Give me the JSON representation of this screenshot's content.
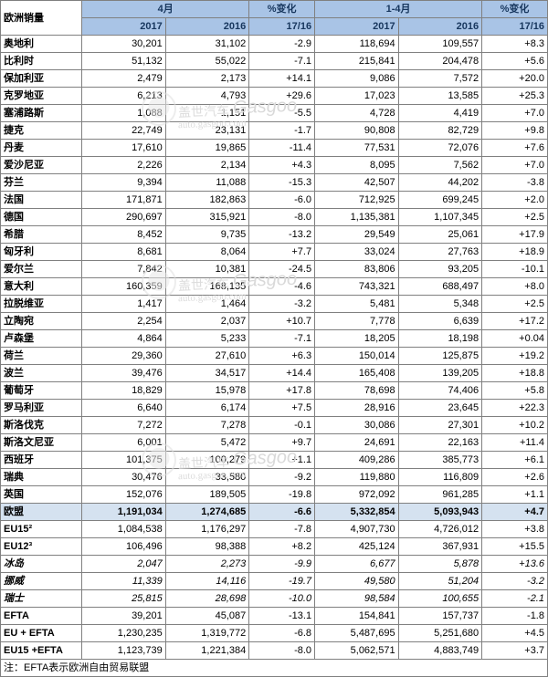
{
  "title": "欧洲销量",
  "header": {
    "group_apr": "4月",
    "group_apr_pct": "%变化",
    "group_ytd": "1-4月",
    "group_ytd_pct": "%变化",
    "y2017": "2017",
    "y2016": "2016",
    "pct": "17/16"
  },
  "rows": [
    {
      "c": "奥地利",
      "a17": "30,201",
      "a16": "31,102",
      "ap": "-2.9",
      "y17": "118,694",
      "y16": "109,557",
      "yp": "+8.3"
    },
    {
      "c": "比利时",
      "a17": "51,132",
      "a16": "55,022",
      "ap": "-7.1",
      "y17": "215,841",
      "y16": "204,478",
      "yp": "+5.6"
    },
    {
      "c": "保加利亚",
      "a17": "2,479",
      "a16": "2,173",
      "ap": "+14.1",
      "y17": "9,086",
      "y16": "7,572",
      "yp": "+20.0"
    },
    {
      "c": "克罗地亚",
      "a17": "6,213",
      "a16": "4,793",
      "ap": "+29.6",
      "y17": "17,023",
      "y16": "13,585",
      "yp": "+25.3"
    },
    {
      "c": "塞浦路斯",
      "a17": "1,088",
      "a16": "1,151",
      "ap": "-5.5",
      "y17": "4,728",
      "y16": "4,419",
      "yp": "+7.0"
    },
    {
      "c": "捷克",
      "a17": "22,749",
      "a16": "23,131",
      "ap": "-1.7",
      "y17": "90,808",
      "y16": "82,729",
      "yp": "+9.8"
    },
    {
      "c": "丹麦",
      "a17": "17,610",
      "a16": "19,865",
      "ap": "-11.4",
      "y17": "77,531",
      "y16": "72,076",
      "yp": "+7.6"
    },
    {
      "c": "爱沙尼亚",
      "a17": "2,226",
      "a16": "2,134",
      "ap": "+4.3",
      "y17": "8,095",
      "y16": "7,562",
      "yp": "+7.0"
    },
    {
      "c": "芬兰",
      "a17": "9,394",
      "a16": "11,088",
      "ap": "-15.3",
      "y17": "42,507",
      "y16": "44,202",
      "yp": "-3.8"
    },
    {
      "c": "法国",
      "a17": "171,871",
      "a16": "182,863",
      "ap": "-6.0",
      "y17": "712,925",
      "y16": "699,245",
      "yp": "+2.0"
    },
    {
      "c": "德国",
      "a17": "290,697",
      "a16": "315,921",
      "ap": "-8.0",
      "y17": "1,135,381",
      "y16": "1,107,345",
      "yp": "+2.5"
    },
    {
      "c": "希腊",
      "a17": "8,452",
      "a16": "9,735",
      "ap": "-13.2",
      "y17": "29,549",
      "y16": "25,061",
      "yp": "+17.9"
    },
    {
      "c": "匈牙利",
      "a17": "8,681",
      "a16": "8,064",
      "ap": "+7.7",
      "y17": "33,024",
      "y16": "27,763",
      "yp": "+18.9"
    },
    {
      "c": "爱尔兰",
      "a17": "7,842",
      "a16": "10,381",
      "ap": "-24.5",
      "y17": "83,806",
      "y16": "93,205",
      "yp": "-10.1"
    },
    {
      "c": "意大利",
      "a17": "160,359",
      "a16": "168,135",
      "ap": "-4.6",
      "y17": "743,321",
      "y16": "688,497",
      "yp": "+8.0"
    },
    {
      "c": "拉脱维亚",
      "a17": "1,417",
      "a16": "1,464",
      "ap": "-3.2",
      "y17": "5,481",
      "y16": "5,348",
      "yp": "+2.5"
    },
    {
      "c": "立陶宛",
      "a17": "2,254",
      "a16": "2,037",
      "ap": "+10.7",
      "y17": "7,778",
      "y16": "6,639",
      "yp": "+17.2"
    },
    {
      "c": "卢森堡",
      "a17": "4,864",
      "a16": "5,233",
      "ap": "-7.1",
      "y17": "18,205",
      "y16": "18,198",
      "yp": "+0.04"
    },
    {
      "c": "荷兰",
      "a17": "29,360",
      "a16": "27,610",
      "ap": "+6.3",
      "y17": "150,014",
      "y16": "125,875",
      "yp": "+19.2"
    },
    {
      "c": "波兰",
      "a17": "39,476",
      "a16": "34,517",
      "ap": "+14.4",
      "y17": "165,408",
      "y16": "139,205",
      "yp": "+18.8"
    },
    {
      "c": "葡萄牙",
      "a17": "18,829",
      "a16": "15,978",
      "ap": "+17.8",
      "y17": "78,698",
      "y16": "74,406",
      "yp": "+5.8"
    },
    {
      "c": "罗马利亚",
      "a17": "6,640",
      "a16": "6,174",
      "ap": "+7.5",
      "y17": "28,916",
      "y16": "23,645",
      "yp": "+22.3"
    },
    {
      "c": "斯洛伐克",
      "a17": "7,272",
      "a16": "7,278",
      "ap": "-0.1",
      "y17": "30,086",
      "y16": "27,301",
      "yp": "+10.2"
    },
    {
      "c": "斯洛文尼亚",
      "a17": "6,001",
      "a16": "5,472",
      "ap": "+9.7",
      "y17": "24,691",
      "y16": "22,163",
      "yp": "+11.4"
    },
    {
      "c": "西班牙",
      "a17": "101,375",
      "a16": "100,279",
      "ap": "+1.1",
      "y17": "409,286",
      "y16": "385,773",
      "yp": "+6.1"
    },
    {
      "c": "瑞典",
      "a17": "30,476",
      "a16": "33,580",
      "ap": "-9.2",
      "y17": "119,880",
      "y16": "116,809",
      "yp": "+2.6"
    },
    {
      "c": "英国",
      "a17": "152,076",
      "a16": "189,505",
      "ap": "-19.8",
      "y17": "972,092",
      "y16": "961,285",
      "yp": "+1.1"
    }
  ],
  "eu_row": {
    "c": "欧盟",
    "a17": "1,191,034",
    "a16": "1,274,685",
    "ap": "-6.6",
    "y17": "5,332,854",
    "y16": "5,093,943",
    "yp": "+4.7",
    "hl": true
  },
  "sub_rows": [
    {
      "c": "EU15²",
      "a17": "1,084,538",
      "a16": "1,176,297",
      "ap": "-7.8",
      "y17": "4,907,730",
      "y16": "4,726,012",
      "yp": "+3.8"
    },
    {
      "c": "EU12³",
      "a17": "106,496",
      "a16": "98,388",
      "ap": "+8.2",
      "y17": "425,124",
      "y16": "367,931",
      "yp": "+15.5"
    },
    {
      "c": "冰岛",
      "a17": "2,047",
      "a16": "2,273",
      "ap": "-9.9",
      "y17": "6,677",
      "y16": "5,878",
      "yp": "+13.6",
      "italic": true
    },
    {
      "c": "挪威",
      "a17": "11,339",
      "a16": "14,116",
      "ap": "-19.7",
      "y17": "49,580",
      "y16": "51,204",
      "yp": "-3.2",
      "italic": true
    },
    {
      "c": "瑞士",
      "a17": "25,815",
      "a16": "28,698",
      "ap": "-10.0",
      "y17": "98,584",
      "y16": "100,655",
      "yp": "-2.1",
      "italic": true
    },
    {
      "c": "EFTA",
      "a17": "39,201",
      "a16": "45,087",
      "ap": "-13.1",
      "y17": "154,841",
      "y16": "157,737",
      "yp": "-1.8"
    },
    {
      "c": "EU + EFTA",
      "a17": "1,230,235",
      "a16": "1,319,772",
      "ap": "-6.8",
      "y17": "5,487,695",
      "y16": "5,251,680",
      "yp": "+4.5"
    },
    {
      "c": "EU15 +EFTA",
      "a17": "1,123,739",
      "a16": "1,221,384",
      "ap": "-8.0",
      "y17": "5,062,571",
      "y16": "4,883,749",
      "yp": "+3.7"
    }
  ],
  "footnote": "注：EFTA表示欧洲自由贸易联盟",
  "watermark": {
    "text_cn": "盖世汽车",
    "text_en": "Gasgoo",
    "sub": "auto.gasgoo.com",
    "color": "#dcdcdc"
  }
}
